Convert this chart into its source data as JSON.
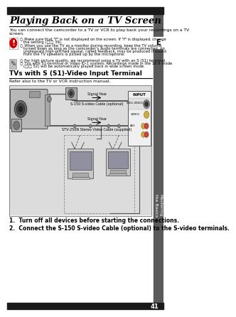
{
  "page_number": "41",
  "title": "Playing Back on a TV Screen",
  "intro_line1": "You can connect the camcorder to a TV or VCR to play back your recordings on a TV",
  "intro_line2": "screen.",
  "warn_b1_line1": "○ Make sure that \"f\" is not displayed on the screen. If \"f\" is displayed, change",
  "warn_b1_line2": "   the setting (□□ 39).",
  "warn_b2_line1": "○ When you use the TV as a monitor during recording, keep the TV volume",
  "warn_b2_line2": "   turned down as long as the camcorder’s audio terminals are connected. An",
  "warn_b2_line3": "   unpleasant high-pitched squeal, called feedback, may be produced if sound",
  "warn_b2_line4": "   from the TV speakers is picked up by the microphone.",
  "tip_b1": "○ For high picture quality, we recommend using a TV with an S (S1) terminal.",
  "tip_b2_line1": "○ TVs with S1-terminal or Video ID-1 system: Recordings made in the 16:9 mode",
  "tip_b2_line2": "   (□□ 52) will be automatically played back in wide screen mode.",
  "section_title": "TVs with S (S1)-Video Input Terminal",
  "section_sub": "Refer also to the TV or VCR instruction manual.",
  "signal_flow1": "Signal flow",
  "cable1_label": "S-150 S-video Cable (optional)",
  "signal_flow2": "Signal flow",
  "cable2_label": "STV-250N Stereo Video Cable (supplied)",
  "input_label": "INPUT",
  "sv_label": "S(S1)-VIDEO",
  "video_label": "VIDEO",
  "ao_label": "A/O",
  "step1": "1.  Turn off all devices before starting the connections.",
  "step2": "2.  Connect the S-150 S-video Cable (optional) to the S-video terminals.",
  "sidebar_text": "Mastering\nthe Basics",
  "e_label": "E",
  "bg_color": "#ffffff",
  "sidebar_color": "#5a5a5a",
  "header_color": "#1a1a1a",
  "footer_color": "#1a1a1a",
  "diagram_bg": "#e0e0e0",
  "text_color": "#000000"
}
